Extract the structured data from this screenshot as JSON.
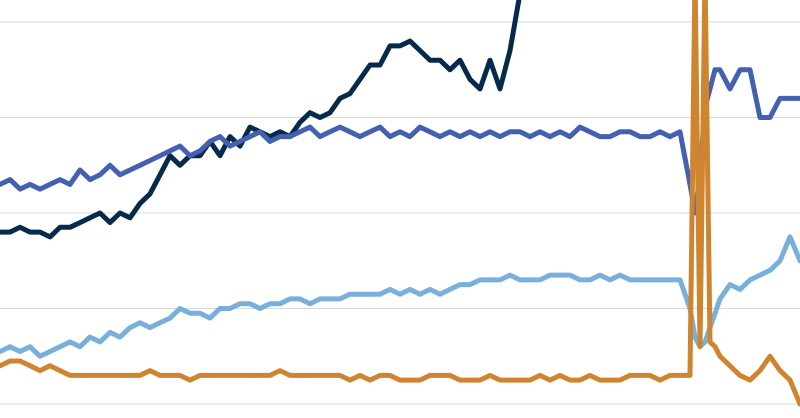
{
  "chart_data": {
    "type": "line",
    "title": "",
    "xlabel": "",
    "ylabel": "",
    "ylim": [
      0,
      4.4
    ],
    "gridlines": [
      0,
      1,
      2,
      3,
      4
    ],
    "grid": true,
    "legend": "none",
    "x": [
      0,
      10,
      20,
      30,
      40,
      50,
      60,
      70,
      80,
      90,
      100,
      110,
      120,
      130,
      140,
      150,
      160,
      170,
      180,
      190,
      200,
      210,
      220,
      230,
      240,
      250,
      260,
      270,
      280,
      290,
      300,
      310,
      320,
      330,
      340,
      350,
      360,
      370,
      380,
      390,
      400,
      410,
      420,
      430,
      440,
      450,
      460,
      470,
      480,
      490,
      500,
      510,
      520,
      530,
      540,
      550,
      560,
      570,
      580,
      590,
      600,
      610,
      620,
      630,
      640,
      650,
      660,
      670,
      680,
      690,
      695,
      700,
      705,
      710,
      715,
      720,
      730,
      740,
      750,
      760,
      770,
      780,
      790,
      800
    ],
    "series": [
      {
        "color": "#062a4b",
        "values": [
          1.8,
          1.8,
          1.85,
          1.8,
          1.8,
          1.75,
          1.85,
          1.85,
          1.9,
          1.95,
          2.0,
          1.9,
          2.0,
          1.95,
          2.1,
          2.2,
          2.4,
          2.6,
          2.5,
          2.6,
          2.6,
          2.75,
          2.6,
          2.8,
          2.7,
          2.9,
          2.85,
          2.8,
          2.85,
          2.8,
          2.95,
          3.05,
          3.0,
          3.05,
          3.2,
          3.25,
          3.4,
          3.55,
          3.55,
          3.75,
          3.75,
          3.8,
          3.7,
          3.6,
          3.6,
          3.5,
          3.6,
          3.4,
          3.3,
          3.6,
          3.3,
          3.7,
          4.3,
          4.3,
          4.3,
          4.3,
          4.3,
          4.3,
          4.3,
          4.3,
          4.3,
          4.3,
          4.3,
          4.3,
          4.3,
          4.3,
          4.3,
          4.3,
          4.3,
          4.3,
          4.3,
          4.3,
          4.3,
          4.3,
          4.3,
          4.3,
          4.3,
          4.3,
          4.3,
          4.3,
          4.3,
          4.3,
          4.3,
          4.3
        ]
      },
      {
        "color": "#4361b0",
        "values": [
          2.3,
          2.35,
          2.25,
          2.3,
          2.25,
          2.3,
          2.35,
          2.3,
          2.45,
          2.35,
          2.4,
          2.5,
          2.4,
          2.45,
          2.5,
          2.55,
          2.6,
          2.65,
          2.7,
          2.6,
          2.65,
          2.75,
          2.8,
          2.7,
          2.75,
          2.8,
          2.85,
          2.75,
          2.8,
          2.8,
          2.85,
          2.9,
          2.8,
          2.85,
          2.9,
          2.85,
          2.8,
          2.85,
          2.9,
          2.8,
          2.85,
          2.8,
          2.9,
          2.85,
          2.8,
          2.85,
          2.8,
          2.85,
          2.8,
          2.85,
          2.8,
          2.85,
          2.85,
          2.8,
          2.85,
          2.8,
          2.85,
          2.8,
          2.9,
          2.85,
          2.8,
          2.8,
          2.85,
          2.85,
          2.8,
          2.8,
          2.85,
          2.8,
          2.85,
          2.3,
          2.0,
          2.4,
          3.1,
          3.3,
          3.5,
          3.5,
          3.3,
          3.5,
          3.5,
          3.0,
          3.0,
          3.2,
          3.2,
          3.2
        ]
      },
      {
        "color": "#78b0db",
        "values": [
          0.55,
          0.6,
          0.55,
          0.6,
          0.5,
          0.55,
          0.6,
          0.65,
          0.6,
          0.7,
          0.65,
          0.75,
          0.7,
          0.8,
          0.85,
          0.8,
          0.85,
          0.9,
          1.0,
          0.95,
          0.95,
          0.9,
          1.0,
          1.0,
          1.05,
          1.05,
          1.0,
          1.05,
          1.05,
          1.1,
          1.1,
          1.05,
          1.1,
          1.1,
          1.1,
          1.15,
          1.15,
          1.15,
          1.15,
          1.2,
          1.15,
          1.2,
          1.15,
          1.2,
          1.15,
          1.2,
          1.25,
          1.25,
          1.3,
          1.3,
          1.3,
          1.35,
          1.3,
          1.3,
          1.3,
          1.35,
          1.35,
          1.35,
          1.3,
          1.3,
          1.35,
          1.3,
          1.35,
          1.3,
          1.3,
          1.3,
          1.3,
          1.3,
          1.3,
          1.0,
          0.7,
          0.6,
          0.65,
          0.8,
          0.95,
          1.1,
          1.25,
          1.2,
          1.3,
          1.35,
          1.4,
          1.5,
          1.75,
          1.5
        ]
      },
      {
        "color": "#cf8530",
        "values": [
          0.4,
          0.45,
          0.45,
          0.4,
          0.35,
          0.4,
          0.35,
          0.3,
          0.3,
          0.3,
          0.3,
          0.3,
          0.3,
          0.3,
          0.3,
          0.35,
          0.3,
          0.3,
          0.3,
          0.25,
          0.3,
          0.3,
          0.3,
          0.3,
          0.3,
          0.3,
          0.3,
          0.3,
          0.35,
          0.3,
          0.3,
          0.3,
          0.3,
          0.3,
          0.3,
          0.25,
          0.3,
          0.25,
          0.3,
          0.3,
          0.25,
          0.25,
          0.25,
          0.3,
          0.3,
          0.3,
          0.25,
          0.25,
          0.25,
          0.3,
          0.25,
          0.25,
          0.25,
          0.25,
          0.3,
          0.25,
          0.3,
          0.25,
          0.25,
          0.3,
          0.25,
          0.25,
          0.25,
          0.3,
          0.3,
          0.3,
          0.25,
          0.3,
          0.3,
          0.3,
          4.5,
          0.6,
          4.5,
          0.65,
          0.6,
          0.5,
          0.4,
          0.3,
          0.25,
          0.35,
          0.5,
          0.35,
          0.25,
          0.0
        ]
      }
    ]
  }
}
